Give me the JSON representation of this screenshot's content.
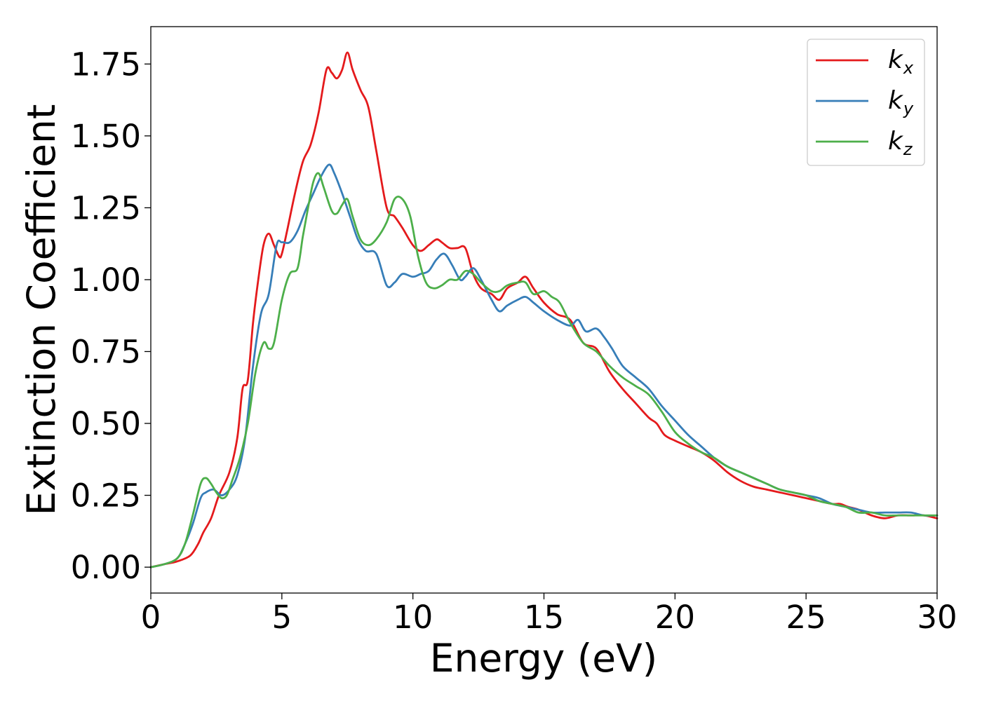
{
  "chart_data": {
    "type": "line",
    "title": "",
    "xlabel": "Energy (eV)",
    "ylabel": "Extinction Coefficient",
    "xlim": [
      0,
      30
    ],
    "ylim": [
      -0.09,
      1.88
    ],
    "xticks": [
      0,
      5,
      10,
      15,
      20,
      25,
      30
    ],
    "xtick_labels": [
      "0",
      "5",
      "10",
      "15",
      "20",
      "25",
      "30"
    ],
    "yticks": [
      0.0,
      0.25,
      0.5,
      0.75,
      1.0,
      1.25,
      1.5,
      1.75
    ],
    "ytick_labels": [
      "0.00",
      "0.25",
      "0.50",
      "0.75",
      "1.00",
      "1.25",
      "1.50",
      "1.75"
    ],
    "grid": false,
    "legend_position": "top-right",
    "series": [
      {
        "name": "k_x",
        "legend_base": "k",
        "legend_sub": "x",
        "color": "#e41a1c",
        "x": [
          0,
          0.5,
          1,
          1.5,
          1.8,
          2,
          2.3,
          2.6,
          3,
          3.3,
          3.5,
          3.7,
          3.9,
          4.1,
          4.3,
          4.5,
          4.7,
          4.9,
          5.0,
          5.2,
          5.5,
          5.8,
          6.1,
          6.4,
          6.7,
          6.9,
          7.1,
          7.3,
          7.5,
          7.7,
          8.0,
          8.3,
          8.6,
          9.0,
          9.3,
          9.6,
          10.0,
          10.3,
          10.6,
          10.9,
          11.1,
          11.4,
          11.7,
          12.0,
          12.3,
          12.6,
          13.0,
          13.3,
          13.6,
          14.0,
          14.3,
          14.6,
          15.0,
          15.5,
          16.0,
          16.5,
          17.0,
          17.5,
          18.0,
          18.5,
          19.0,
          19.3,
          19.6,
          20.0,
          20.5,
          21.0,
          21.5,
          22.0,
          22.5,
          23.0,
          23.5,
          24.0,
          24.5,
          25.0,
          25.5,
          26.0,
          26.3,
          26.6,
          27.0,
          27.5,
          28.0,
          28.5,
          29.0,
          29.5,
          30.0
        ],
        "y": [
          0.0,
          0.01,
          0.02,
          0.04,
          0.08,
          0.12,
          0.17,
          0.25,
          0.33,
          0.45,
          0.62,
          0.65,
          0.85,
          1.0,
          1.12,
          1.16,
          1.12,
          1.08,
          1.09,
          1.17,
          1.3,
          1.41,
          1.47,
          1.58,
          1.73,
          1.72,
          1.7,
          1.73,
          1.79,
          1.73,
          1.66,
          1.6,
          1.45,
          1.25,
          1.22,
          1.18,
          1.12,
          1.1,
          1.12,
          1.14,
          1.13,
          1.11,
          1.11,
          1.11,
          1.02,
          0.97,
          0.95,
          0.93,
          0.97,
          0.99,
          1.01,
          0.97,
          0.92,
          0.88,
          0.86,
          0.78,
          0.76,
          0.68,
          0.62,
          0.57,
          0.52,
          0.5,
          0.46,
          0.44,
          0.42,
          0.4,
          0.37,
          0.33,
          0.3,
          0.28,
          0.27,
          0.26,
          0.25,
          0.24,
          0.23,
          0.22,
          0.22,
          0.21,
          0.2,
          0.18,
          0.17,
          0.18,
          0.18,
          0.18,
          0.17
        ]
      },
      {
        "name": "k_y",
        "legend_base": "k",
        "legend_sub": "y",
        "color": "#377eb8",
        "x": [
          0,
          0.5,
          1,
          1.3,
          1.6,
          1.9,
          2.1,
          2.4,
          2.7,
          3.0,
          3.3,
          3.6,
          3.9,
          4.2,
          4.5,
          4.8,
          5.0,
          5.3,
          5.6,
          5.9,
          6.2,
          6.5,
          6.8,
          7.0,
          7.3,
          7.6,
          7.9,
          8.2,
          8.6,
          9.0,
          9.3,
          9.6,
          10.0,
          10.3,
          10.6,
          10.9,
          11.2,
          11.5,
          11.8,
          12.0,
          12.3,
          12.6,
          13.0,
          13.3,
          13.6,
          14.0,
          14.3,
          14.6,
          15.0,
          15.5,
          16.0,
          16.3,
          16.6,
          17.0,
          17.3,
          17.6,
          18.0,
          18.5,
          19.0,
          19.5,
          20.0,
          20.5,
          21.0,
          21.5,
          22.0,
          22.5,
          23.0,
          23.5,
          24.0,
          24.5,
          25.0,
          25.5,
          26.0,
          26.5,
          27.0,
          27.5,
          28.0,
          28.5,
          29.0,
          29.5,
          30.0
        ],
        "y": [
          0.0,
          0.01,
          0.03,
          0.08,
          0.15,
          0.24,
          0.26,
          0.27,
          0.25,
          0.27,
          0.32,
          0.45,
          0.7,
          0.88,
          0.95,
          1.12,
          1.13,
          1.13,
          1.17,
          1.24,
          1.3,
          1.36,
          1.4,
          1.37,
          1.3,
          1.22,
          1.14,
          1.1,
          1.09,
          0.98,
          0.99,
          1.02,
          1.01,
          1.02,
          1.03,
          1.07,
          1.09,
          1.05,
          1.0,
          1.01,
          1.04,
          1.0,
          0.93,
          0.89,
          0.91,
          0.93,
          0.94,
          0.92,
          0.89,
          0.86,
          0.84,
          0.86,
          0.82,
          0.83,
          0.8,
          0.76,
          0.7,
          0.66,
          0.62,
          0.56,
          0.51,
          0.46,
          0.42,
          0.38,
          0.35,
          0.33,
          0.31,
          0.29,
          0.27,
          0.26,
          0.25,
          0.24,
          0.22,
          0.21,
          0.2,
          0.19,
          0.19,
          0.19,
          0.19,
          0.18,
          0.18
        ]
      },
      {
        "name": "k_z",
        "legend_base": "k",
        "legend_sub": "z",
        "color": "#4daf4a",
        "x": [
          0,
          0.5,
          1,
          1.3,
          1.6,
          1.9,
          2.1,
          2.3,
          2.5,
          2.7,
          2.9,
          3.1,
          3.4,
          3.7,
          4.0,
          4.3,
          4.5,
          4.7,
          5.0,
          5.3,
          5.6,
          5.8,
          6.0,
          6.2,
          6.4,
          6.6,
          6.9,
          7.1,
          7.3,
          7.5,
          7.7,
          8.0,
          8.3,
          8.6,
          9.0,
          9.3,
          9.6,
          9.9,
          10.2,
          10.5,
          10.8,
          11.1,
          11.4,
          11.7,
          12.0,
          12.3,
          12.6,
          13.0,
          13.3,
          13.6,
          14.0,
          14.3,
          14.6,
          15.0,
          15.3,
          15.6,
          16.0,
          16.5,
          17.0,
          17.5,
          18.0,
          18.5,
          19.0,
          19.5,
          20.0,
          20.5,
          21.0,
          21.5,
          22.0,
          22.5,
          23.0,
          23.5,
          24.0,
          24.5,
          25.0,
          25.5,
          26.0,
          26.5,
          27.0,
          27.5,
          28.0,
          28.5,
          29.0,
          29.5,
          30.0
        ],
        "y": [
          0.0,
          0.01,
          0.03,
          0.08,
          0.18,
          0.29,
          0.31,
          0.29,
          0.26,
          0.24,
          0.25,
          0.3,
          0.38,
          0.5,
          0.68,
          0.78,
          0.76,
          0.78,
          0.93,
          1.02,
          1.04,
          1.15,
          1.25,
          1.34,
          1.37,
          1.32,
          1.24,
          1.23,
          1.26,
          1.28,
          1.22,
          1.14,
          1.12,
          1.14,
          1.2,
          1.28,
          1.28,
          1.22,
          1.08,
          0.99,
          0.97,
          0.98,
          1.0,
          1.0,
          1.03,
          1.02,
          0.99,
          0.96,
          0.96,
          0.98,
          0.99,
          0.99,
          0.95,
          0.96,
          0.94,
          0.92,
          0.85,
          0.78,
          0.75,
          0.7,
          0.66,
          0.63,
          0.6,
          0.54,
          0.47,
          0.43,
          0.4,
          0.38,
          0.35,
          0.33,
          0.31,
          0.29,
          0.27,
          0.26,
          0.25,
          0.23,
          0.22,
          0.21,
          0.19,
          0.19,
          0.18,
          0.18,
          0.18,
          0.18,
          0.18
        ]
      }
    ]
  }
}
